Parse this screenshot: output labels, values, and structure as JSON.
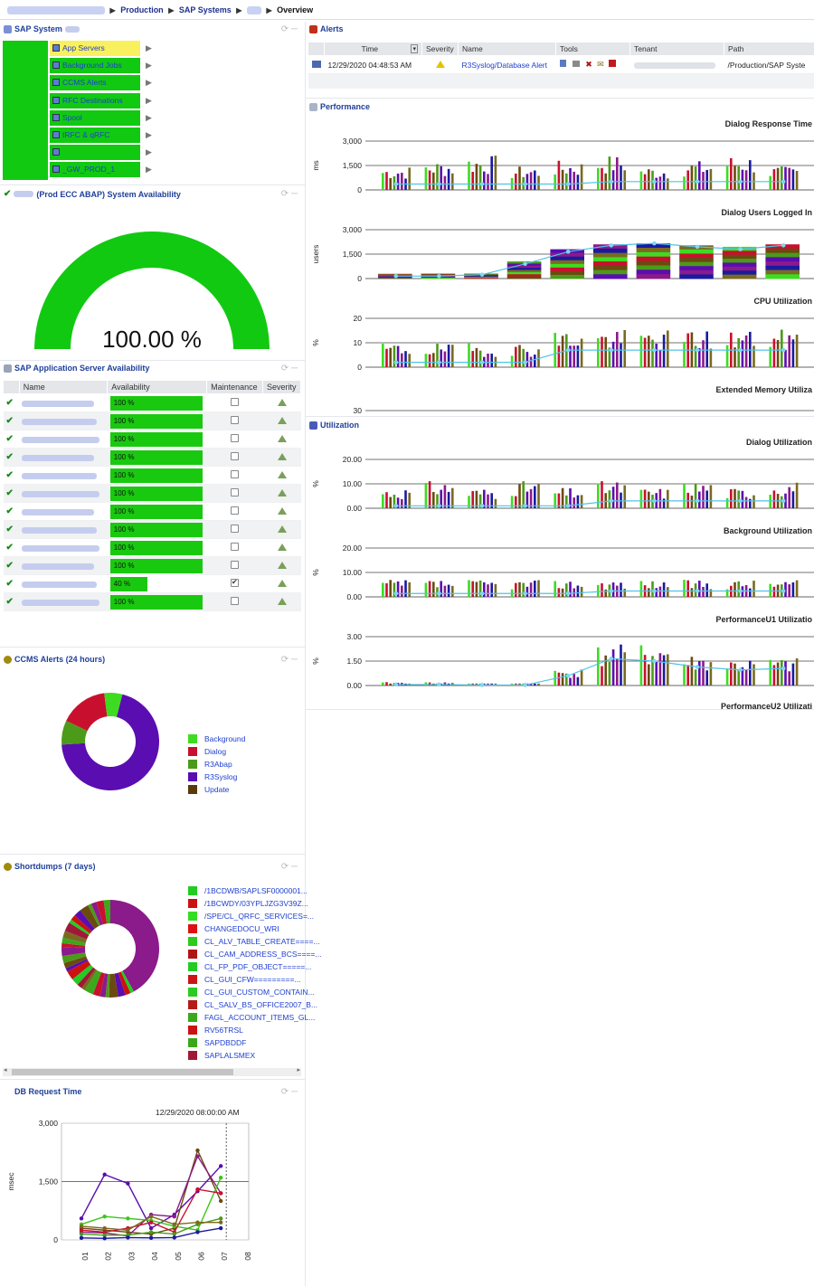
{
  "breadcrumb": {
    "items": [
      "Production",
      "SAP Systems",
      "Overview"
    ]
  },
  "sap_system": {
    "title": "SAP System",
    "items": [
      {
        "label": "App Servers",
        "selected": true
      },
      {
        "label": "Background Jobs"
      },
      {
        "label": "CCMS Alerts"
      },
      {
        "label": "RFC Destinations"
      },
      {
        "label": "Spool"
      },
      {
        "label": "tRFC & qRFC"
      },
      {
        "label": ""
      },
      {
        "label": "_GW_PROD_1"
      }
    ]
  },
  "availability": {
    "title": "(Prod ECC ABAP) System Availability",
    "value_text": "100.00 %",
    "value": 100
  },
  "app_servers": {
    "title": "SAP Application Server Availability",
    "columns": [
      "Name",
      "Availability",
      "Maintenance",
      "Severity"
    ],
    "rows": [
      {
        "avail": "100 %",
        "pct": 100,
        "maint": false
      },
      {
        "avail": "100 %",
        "pct": 100,
        "maint": false
      },
      {
        "avail": "100 %",
        "pct": 100,
        "maint": false
      },
      {
        "avail": "100 %",
        "pct": 100,
        "maint": false
      },
      {
        "avail": "100 %",
        "pct": 100,
        "maint": false
      },
      {
        "avail": "100 %",
        "pct": 100,
        "maint": false
      },
      {
        "avail": "100 %",
        "pct": 100,
        "maint": false
      },
      {
        "avail": "100 %",
        "pct": 100,
        "maint": false
      },
      {
        "avail": "100 %",
        "pct": 100,
        "maint": false
      },
      {
        "avail": "100 %",
        "pct": 100,
        "maint": false
      },
      {
        "avail": "40 %",
        "pct": 40,
        "maint": true
      },
      {
        "avail": "100 %",
        "pct": 100,
        "maint": false
      }
    ]
  },
  "ccms": {
    "title": "CCMS Alerts (24 hours)",
    "legend": [
      {
        "label": "Background",
        "color": "#3ddc21"
      },
      {
        "label": "Dialog",
        "color": "#c8102e"
      },
      {
        "label": "R3Abap",
        "color": "#4c9a1a"
      },
      {
        "label": "R3Syslog",
        "color": "#5a0db0"
      },
      {
        "label": "Update",
        "color": "#5a3a0a"
      }
    ]
  },
  "shortdumps": {
    "title": "Shortdumps (7 days)",
    "legend": [
      {
        "label": "/1BCDWB/SAPLSF0000001...",
        "color": "#22cc22"
      },
      {
        "label": "/1BCWDY/03YPLJZG3V39Z...",
        "color": "#cc1111"
      },
      {
        "label": "/SPE/CL_QRFC_SERVICES=...",
        "color": "#33dd22"
      },
      {
        "label": "CHANGEDOCU_WRI",
        "color": "#dd1111"
      },
      {
        "label": "CL_ALV_TABLE_CREATE====...",
        "color": "#2ccc1a"
      },
      {
        "label": "CL_CAM_ADDRESS_BCS====...",
        "color": "#b01515"
      },
      {
        "label": "CL_FP_PDF_OBJECT=====...",
        "color": "#22cc22"
      },
      {
        "label": "CL_GUI_CFW=========...",
        "color": "#cc1515"
      },
      {
        "label": "CL_GUI_CUSTOM_CONTAIN...",
        "color": "#2acc22"
      },
      {
        "label": "CL_SALV_BS_OFFICE2007_B...",
        "color": "#b51a1a"
      },
      {
        "label": "FAGL_ACCOUNT_ITEMS_GL...",
        "color": "#3aa81a"
      },
      {
        "label": "RV56TRSL",
        "color": "#cc1111"
      },
      {
        "label": "SAPDBDDF",
        "color": "#3aa81a"
      },
      {
        "label": "SAPLALSMEX",
        "color": "#a01838"
      }
    ]
  },
  "dbreq": {
    "title": "DB Request Time",
    "tooltip": "12/29/2020 08:00:00 AM",
    "ylabel": "msec"
  },
  "alerts": {
    "title": "Alerts",
    "columns": [
      "Time",
      "Severity",
      "Name",
      "Tools",
      "Tenant",
      "Path"
    ],
    "row": {
      "time": "12/29/2020 04:48:53 AM",
      "name": "R3Syslog/Database Alert",
      "path": "/Production/SAP Syste"
    }
  },
  "performance": {
    "title": "Performance",
    "charts": [
      {
        "title": "Dialog Response Time",
        "ylabel": "ms",
        "ticks": [
          "3,000",
          "1,500",
          "0"
        ]
      },
      {
        "title": "Dialog Users Logged In",
        "ylabel": "users",
        "ticks": [
          "3,000",
          "1,500",
          "0"
        ]
      },
      {
        "title": "CPU Utilization",
        "ylabel": "%",
        "ticks": [
          "20",
          "10",
          "0"
        ]
      },
      {
        "title": "Extended Memory Utiliza",
        "ylabel": "",
        "ticks": [
          "30"
        ]
      }
    ]
  },
  "utilization": {
    "title": "Utilization",
    "charts": [
      {
        "title": "Dialog Utilization",
        "ylabel": "%",
        "ticks": [
          "20.00",
          "10.00",
          "0.00"
        ]
      },
      {
        "title": "Background Utilization",
        "ylabel": "%",
        "ticks": [
          "20.00",
          "10.00",
          "0.00"
        ]
      },
      {
        "title": "PerformanceU1 Utilizatio",
        "ylabel": "%",
        "ticks": [
          "3.00",
          "1.50",
          "0.00"
        ]
      },
      {
        "title": "PerformanceU2 Utilizati",
        "ylabel": "",
        "ticks": []
      }
    ]
  },
  "chart_data": {
    "type": "line",
    "title": "DB Request Time",
    "xlabel": "",
    "ylabel": "msec",
    "ylim": [
      0,
      3000
    ],
    "yticks": [
      "3,000",
      "1,500",
      "0"
    ],
    "categories": [
      "01",
      "02",
      "03",
      "04",
      "05",
      "06",
      "07",
      "08"
    ],
    "series": [
      {
        "color": "#5a0db0",
        "values": [
          550,
          1680,
          1450,
          300,
          650,
          1250,
          1900,
          null
        ]
      },
      {
        "color": "#6b4a10",
        "values": [
          300,
          250,
          200,
          150,
          300,
          2300,
          1000,
          null
        ]
      },
      {
        "color": "#8b1a8b",
        "values": [
          200,
          180,
          100,
          650,
          600,
          2150,
          1200,
          null
        ]
      },
      {
        "color": "#3dc41a",
        "values": [
          400,
          600,
          550,
          500,
          350,
          250,
          1600,
          null
        ]
      },
      {
        "color": "#c8102e",
        "values": [
          250,
          200,
          300,
          450,
          200,
          1300,
          1200,
          null
        ]
      },
      {
        "color": "#4c9a1a",
        "values": [
          150,
          120,
          120,
          200,
          150,
          400,
          550,
          null
        ]
      },
      {
        "color": "#1a1aa0",
        "values": [
          50,
          40,
          60,
          50,
          60,
          200,
          300,
          null
        ]
      },
      {
        "color": "#7a6a20",
        "values": [
          350,
          300,
          250,
          600,
          400,
          450,
          450,
          null
        ]
      }
    ]
  }
}
